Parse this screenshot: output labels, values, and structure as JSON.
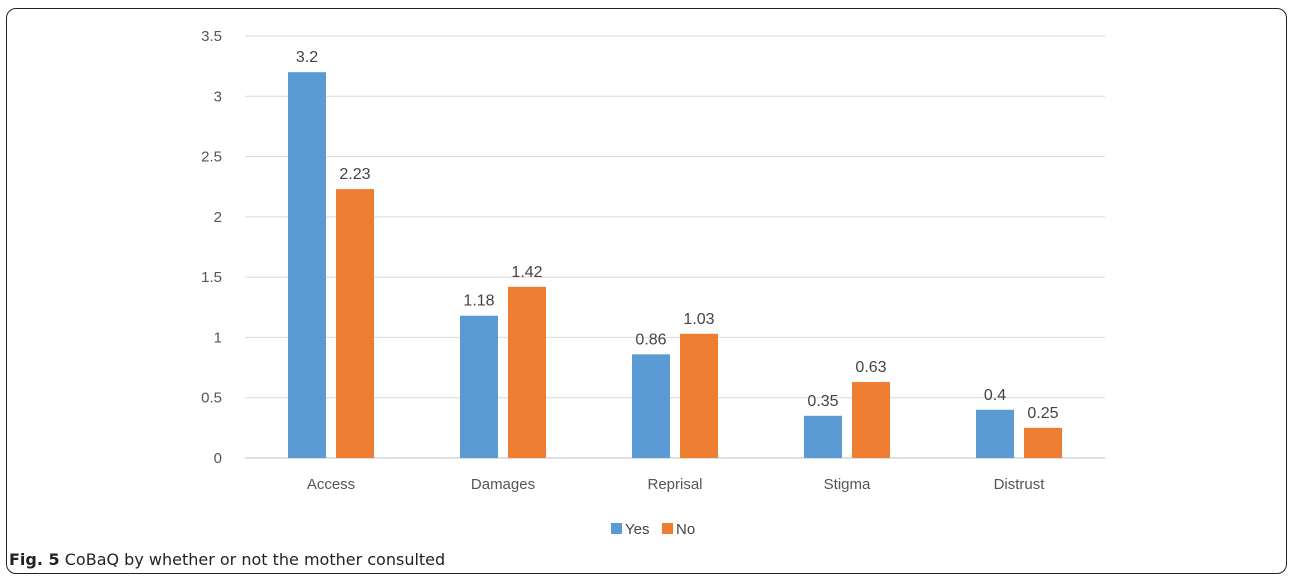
{
  "caption": {
    "label": "Fig. 5",
    "text": "CoBaQ by whether or not the mother consulted"
  },
  "chart_data": {
    "type": "bar",
    "title": "",
    "xlabel": "",
    "ylabel": "",
    "categories": [
      "Access",
      "Damages",
      "Reprisal",
      "Stigma",
      "Distrust"
    ],
    "series": [
      {
        "name": "Yes",
        "color": "#5B9BD5",
        "values": [
          3.2,
          1.18,
          0.86,
          0.35,
          0.4
        ]
      },
      {
        "name": "No",
        "color": "#ED7D31",
        "values": [
          2.23,
          1.42,
          1.03,
          0.63,
          0.25
        ]
      }
    ],
    "ylim": [
      0,
      3.5
    ],
    "yticks": [
      "0",
      "0.5",
      "1",
      "1.5",
      "2",
      "2.5",
      "3",
      "3.5"
    ],
    "grid": true,
    "legend": "bottom-center",
    "data_labels": true
  }
}
